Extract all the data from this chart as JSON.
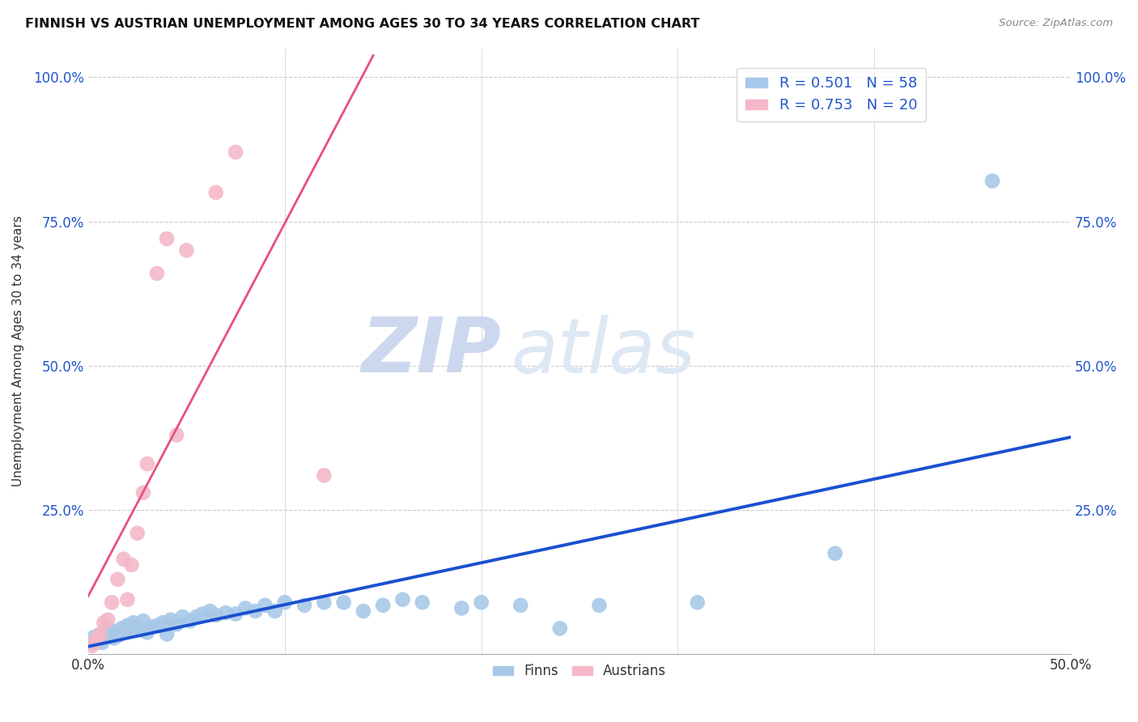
{
  "title": "FINNISH VS AUSTRIAN UNEMPLOYMENT AMONG AGES 30 TO 34 YEARS CORRELATION CHART",
  "source": "Source: ZipAtlas.com",
  "ylabel": "Unemployment Among Ages 30 to 34 years",
  "xlim": [
    0.0,
    0.5
  ],
  "ylim": [
    0.0,
    1.05
  ],
  "xticks": [
    0.0,
    0.1,
    0.2,
    0.3,
    0.4,
    0.5
  ],
  "yticks": [
    0.0,
    0.25,
    0.5,
    0.75,
    1.0
  ],
  "ytick_labels": [
    "",
    "25.0%",
    "50.0%",
    "75.0%",
    "100.0%"
  ],
  "xtick_labels": [
    "0.0%",
    "",
    "",
    "",
    "",
    "50.0%"
  ],
  "background_color": "#ffffff",
  "grid_color": "#cccccc",
  "finns_color": "#a8c8e8",
  "austrians_color": "#f4b8c8",
  "finn_line_color": "#1a50d0",
  "austrian_line_color": "#e8507a",
  "legend_R_color": "#2255cc",
  "R_finn": 0.501,
  "N_finn": 58,
  "R_austrian": 0.753,
  "N_austrian": 20,
  "finns_x": [
    0.002,
    0.003,
    0.005,
    0.006,
    0.007,
    0.008,
    0.009,
    0.01,
    0.011,
    0.012,
    0.013,
    0.014,
    0.015,
    0.016,
    0.017,
    0.018,
    0.019,
    0.02,
    0.022,
    0.023,
    0.025,
    0.027,
    0.028,
    0.03,
    0.032,
    0.035,
    0.038,
    0.04,
    0.042,
    0.045,
    0.048,
    0.052,
    0.055,
    0.058,
    0.062,
    0.065,
    0.07,
    0.075,
    0.08,
    0.085,
    0.09,
    0.095,
    0.1,
    0.11,
    0.12,
    0.13,
    0.14,
    0.15,
    0.16,
    0.17,
    0.19,
    0.2,
    0.22,
    0.24,
    0.26,
    0.31,
    0.38,
    0.46
  ],
  "finns_y": [
    0.02,
    0.03,
    0.025,
    0.035,
    0.02,
    0.04,
    0.03,
    0.045,
    0.035,
    0.04,
    0.028,
    0.038,
    0.032,
    0.04,
    0.045,
    0.038,
    0.042,
    0.05,
    0.045,
    0.055,
    0.048,
    0.042,
    0.058,
    0.038,
    0.048,
    0.05,
    0.055,
    0.035,
    0.06,
    0.052,
    0.065,
    0.058,
    0.065,
    0.07,
    0.075,
    0.068,
    0.072,
    0.07,
    0.08,
    0.075,
    0.085,
    0.075,
    0.09,
    0.085,
    0.09,
    0.09,
    0.075,
    0.085,
    0.095,
    0.09,
    0.08,
    0.09,
    0.085,
    0.045,
    0.085,
    0.09,
    0.175,
    0.82
  ],
  "austrians_x": [
    0.002,
    0.004,
    0.006,
    0.008,
    0.01,
    0.012,
    0.015,
    0.018,
    0.02,
    0.022,
    0.025,
    0.028,
    0.03,
    0.035,
    0.04,
    0.045,
    0.05,
    0.065,
    0.075,
    0.12
  ],
  "austrians_y": [
    0.015,
    0.025,
    0.035,
    0.055,
    0.06,
    0.09,
    0.13,
    0.165,
    0.095,
    0.155,
    0.21,
    0.28,
    0.33,
    0.66,
    0.72,
    0.38,
    0.7,
    0.8,
    0.87,
    0.31
  ],
  "finn_line_start_x": 0.0,
  "finn_line_end_x": 0.5,
  "austrian_line_start_x": 0.0,
  "austrian_line_end_x": 0.145,
  "watermark_zip": "ZIP",
  "watermark_atlas": "atlas",
  "watermark_color": "#ccd8ee"
}
